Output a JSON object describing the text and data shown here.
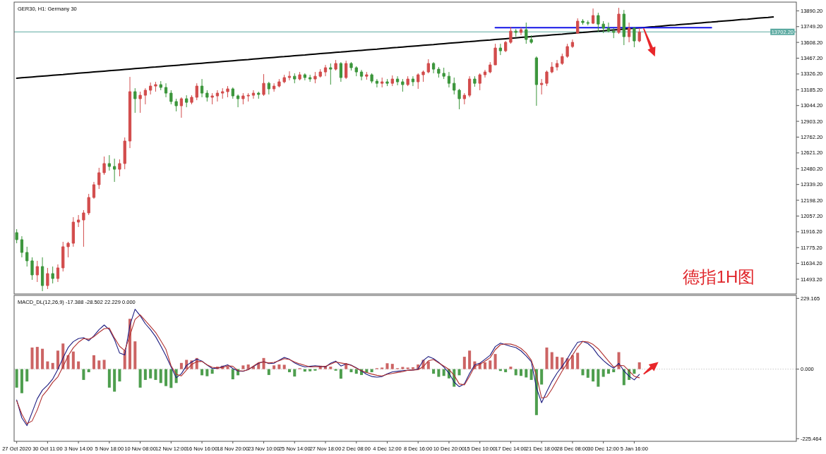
{
  "chart_data": [
    {
      "type": "candlestick",
      "title": "GER30, H1: Germany 30",
      "categories": [
        null,
        null,
        null,
        null,
        null,
        null,
        null,
        null,
        null,
        null,
        null,
        null,
        null,
        null,
        null,
        null,
        null,
        null,
        null,
        null,
        null,
        null,
        null,
        null,
        null,
        null,
        null,
        null,
        null,
        null,
        null,
        null,
        null,
        null,
        null,
        null,
        null,
        null,
        null,
        null,
        null,
        null,
        null,
        null,
        null,
        null,
        null,
        null,
        null,
        null,
        null,
        null,
        null,
        null,
        null,
        null,
        null,
        null,
        null,
        null,
        null,
        null,
        null,
        null,
        null,
        null,
        null,
        null,
        null,
        null,
        null,
        null,
        null,
        null,
        null,
        null,
        null,
        null,
        null,
        null,
        null,
        null,
        null,
        null,
        null,
        null,
        null,
        null,
        null,
        null,
        null,
        null,
        null,
        null,
        null,
        null,
        null,
        null,
        null,
        null,
        null,
        null,
        null,
        null,
        null,
        null,
        null,
        null,
        null,
        null,
        null,
        null,
        null,
        null,
        null,
        null,
        null,
        null,
        null,
        null,
        null,
        null,
        null,
        null,
        null,
        null,
        null,
        null,
        null,
        null,
        null,
        null,
        null,
        null,
        null,
        null,
        null,
        null,
        null,
        null,
        null,
        null,
        null,
        null,
        null,
        null,
        null,
        null,
        null,
        null,
        null,
        null
      ],
      "ohlc": [
        [
          11909,
          11940,
          11814,
          11846
        ],
        [
          11846,
          11877,
          11688,
          11732
        ],
        [
          11732,
          11783,
          11606,
          11657
        ],
        [
          11657,
          11688,
          11487,
          11531
        ],
        [
          11531,
          11657,
          11468,
          11606
        ],
        [
          11606,
          11688,
          11386,
          11436
        ],
        [
          11436,
          11594,
          11405,
          11543
        ],
        [
          11543,
          11606,
          11455,
          11499
        ],
        [
          11499,
          11625,
          11468,
          11594
        ],
        [
          11594,
          11827,
          11562,
          11783
        ],
        [
          11783,
          11827,
          11688,
          11814
        ],
        [
          11814,
          12047,
          11783,
          12003
        ],
        [
          12003,
          12066,
          11959,
          12022
        ],
        [
          12022,
          12110,
          11783,
          12085
        ],
        [
          12085,
          12255,
          12066,
          12223
        ],
        [
          12223,
          12362,
          12211,
          12337
        ],
        [
          12337,
          12488,
          12299,
          12444
        ],
        [
          12444,
          12589,
          12425,
          12526
        ],
        [
          12526,
          12601,
          12463,
          12500
        ],
        [
          12500,
          12570,
          12362,
          12475
        ],
        [
          12475,
          12563,
          12412,
          12526
        ],
        [
          12526,
          12759,
          12475,
          12727
        ],
        [
          12727,
          13300,
          12664,
          13168
        ],
        [
          13168,
          13199,
          12979,
          13105
        ],
        [
          13105,
          13168,
          12979,
          13136
        ],
        [
          13136,
          13199,
          13055,
          13181
        ],
        [
          13181,
          13250,
          13143,
          13218
        ],
        [
          13218,
          13256,
          13168,
          13231
        ],
        [
          13231,
          13262,
          13181,
          13206
        ],
        [
          13206,
          13243,
          13118,
          13155
        ],
        [
          13155,
          13181,
          13055,
          13080
        ],
        [
          13080,
          13105,
          12992,
          13042
        ],
        [
          13042,
          13118,
          12935,
          13105
        ],
        [
          13105,
          13136,
          13029,
          13073
        ],
        [
          13073,
          13136,
          13055,
          13118
        ],
        [
          13118,
          13243,
          13092,
          13218
        ],
        [
          13218,
          13281,
          13118,
          13155
        ],
        [
          13155,
          13181,
          13080,
          13118
        ],
        [
          13118,
          13155,
          13055,
          13130
        ],
        [
          13130,
          13181,
          13080,
          13155
        ],
        [
          13155,
          13199,
          13105,
          13168
        ],
        [
          13168,
          13218,
          13118,
          13193
        ],
        [
          13193,
          13206,
          13105,
          13130
        ],
        [
          13130,
          13143,
          13029,
          13105
        ],
        [
          13105,
          13155,
          13055,
          13130
        ],
        [
          13130,
          13155,
          13080,
          13136
        ],
        [
          13136,
          13181,
          13105,
          13155
        ],
        [
          13155,
          13168,
          13105,
          13143
        ],
        [
          13143,
          13325,
          13130,
          13243
        ],
        [
          13243,
          13256,
          13143,
          13193
        ],
        [
          13193,
          13243,
          13168,
          13218
        ],
        [
          13218,
          13281,
          13206,
          13256
        ],
        [
          13256,
          13319,
          13243,
          13294
        ],
        [
          13294,
          13350,
          13269,
          13306
        ],
        [
          13306,
          13332,
          13243,
          13281
        ],
        [
          13281,
          13344,
          13269,
          13319
        ],
        [
          13319,
          13332,
          13269,
          13294
        ],
        [
          13294,
          13319,
          13256,
          13281
        ],
        [
          13281,
          13344,
          13243,
          13306
        ],
        [
          13306,
          13369,
          13294,
          13344
        ],
        [
          13344,
          13407,
          13306,
          13382
        ],
        [
          13382,
          13420,
          13231,
          13369
        ],
        [
          13369,
          13451,
          13357,
          13420
        ],
        [
          13420,
          13432,
          13256,
          13294
        ],
        [
          13294,
          13445,
          13281,
          13420
        ],
        [
          13420,
          13432,
          13357,
          13382
        ],
        [
          13382,
          13395,
          13306,
          13344
        ],
        [
          13344,
          13363,
          13269,
          13306
        ],
        [
          13306,
          13344,
          13275,
          13319
        ],
        [
          13319,
          13332,
          13243,
          13262
        ],
        [
          13262,
          13281,
          13206,
          13243
        ],
        [
          13243,
          13294,
          13206,
          13256
        ],
        [
          13256,
          13281,
          13218,
          13243
        ],
        [
          13243,
          13313,
          13218,
          13281
        ],
        [
          13281,
          13306,
          13225,
          13256
        ],
        [
          13256,
          13281,
          13168,
          13231
        ],
        [
          13231,
          13306,
          13218,
          13281
        ],
        [
          13281,
          13306,
          13218,
          13256
        ],
        [
          13256,
          13332,
          13193,
          13319
        ],
        [
          13319,
          13357,
          13256,
          13344
        ],
        [
          13344,
          13458,
          13332,
          13420
        ],
        [
          13420,
          13432,
          13332,
          13369
        ],
        [
          13369,
          13388,
          13294,
          13332
        ],
        [
          13332,
          13382,
          13281,
          13306
        ],
        [
          13306,
          13344,
          13206,
          13243
        ],
        [
          13243,
          13294,
          13143,
          13181
        ],
        [
          13181,
          13193,
          13011,
          13105
        ],
        [
          13105,
          13155,
          13055,
          13136
        ],
        [
          13136,
          13306,
          13118,
          13281
        ],
        [
          13281,
          13306,
          13212,
          13243
        ],
        [
          13243,
          13332,
          13181,
          13319
        ],
        [
          13319,
          13363,
          13294,
          13344
        ],
        [
          13344,
          13432,
          13332,
          13407
        ],
        [
          13407,
          13596,
          13407,
          13558
        ],
        [
          13558,
          13596,
          13495,
          13533
        ],
        [
          13533,
          13621,
          13521,
          13609
        ],
        [
          13609,
          13747,
          13596,
          13709
        ],
        [
          13709,
          13728,
          13659,
          13697
        ],
        [
          13697,
          13741,
          13672,
          13722
        ],
        [
          13722,
          13785,
          13596,
          13634
        ],
        [
          13634,
          13672,
          13596,
          13609
        ],
        [
          13470,
          13483,
          13042,
          13231
        ],
        [
          13231,
          13281,
          13143,
          13243
        ],
        [
          13243,
          13357,
          13218,
          13344
        ],
        [
          13344,
          13432,
          13332,
          13388
        ],
        [
          13388,
          13451,
          13357,
          13420
        ],
        [
          13420,
          13508,
          13407,
          13483
        ],
        [
          13483,
          13596,
          13470,
          13571
        ],
        [
          13571,
          13634,
          13558,
          13609
        ],
        [
          13691,
          13823,
          13684,
          13798
        ],
        [
          13798,
          13816,
          13766,
          13785
        ],
        [
          13785,
          13804,
          13760,
          13779
        ],
        [
          13779,
          13911,
          13772,
          13848
        ],
        [
          13848,
          13873,
          13703,
          13772
        ],
        [
          13772,
          13798,
          13691,
          13735
        ],
        [
          13735,
          13785,
          13697,
          13709
        ],
        [
          13709,
          13735,
          13646,
          13697
        ],
        [
          13697,
          13917,
          13684,
          13861
        ],
        [
          13861,
          13898,
          13584,
          13659
        ],
        [
          13659,
          13785,
          13609,
          13735
        ],
        [
          13735,
          13747,
          13565,
          13621
        ],
        [
          13621,
          13735,
          13609,
          13702
        ],
        null,
        null,
        null,
        null,
        null,
        null,
        null,
        null,
        null,
        null,
        null,
        null,
        null,
        null,
        null,
        null,
        null,
        null,
        null,
        null,
        null,
        null,
        null,
        null,
        null,
        null,
        null,
        null,
        null,
        null
      ],
      "colors": [
        "#3c963c",
        "#3c963c",
        "#3c963c",
        "#3c963c",
        "#d24c4c",
        "#3c963c",
        "#d24c4c",
        "#3c963c",
        "#d24c4c",
        "#d24c4c",
        "#d24c4c",
        "#d24c4c",
        "#d24c4c",
        "#d24c4c",
        "#d24c4c",
        "#d24c4c",
        "#d24c4c",
        "#d24c4c",
        "#3c963c",
        "#3c963c",
        "#d24c4c",
        "#d24c4c",
        "#d24c4c",
        "#3c963c",
        "#d24c4c",
        "#d24c4c",
        "#d24c4c",
        "#d24c4c",
        "#3c963c",
        "#3c963c",
        "#3c963c",
        "#3c963c",
        "#d24c4c",
        "#3c963c",
        "#d24c4c",
        "#d24c4c",
        "#3c963c",
        "#3c963c",
        "#d24c4c",
        "#d24c4c",
        "#d24c4c",
        "#d24c4c",
        "#3c963c",
        "#3c963c",
        "#d24c4c",
        "#d24c4c",
        "#d24c4c",
        "#3c963c",
        "#d24c4c",
        "#3c963c",
        "#d24c4c",
        "#d24c4c",
        "#d24c4c",
        "#d24c4c",
        "#3c963c",
        "#d24c4c",
        "#3c963c",
        "#3c963c",
        "#d24c4c",
        "#d24c4c",
        "#d24c4c",
        "#3c963c",
        "#d24c4c",
        "#3c963c",
        "#d24c4c",
        "#3c963c",
        "#3c963c",
        "#3c963c",
        "#d24c4c",
        "#3c963c",
        "#3c963c",
        "#d24c4c",
        "#3c963c",
        "#d24c4c",
        "#3c963c",
        "#3c963c",
        "#d24c4c",
        "#3c963c",
        "#d24c4c",
        "#d24c4c",
        "#d24c4c",
        "#3c963c",
        "#3c963c",
        "#3c963c",
        "#3c963c",
        "#3c963c",
        "#3c963c",
        "#d24c4c",
        "#d24c4c",
        "#3c963c",
        "#d24c4c",
        "#d24c4c",
        "#d24c4c",
        "#d24c4c",
        "#3c963c",
        "#d24c4c",
        "#d24c4c",
        "#3c963c",
        "#d24c4c",
        "#3c963c",
        "#3c963c",
        "#3c963c",
        "#d24c4c",
        "#d24c4c",
        "#d24c4c",
        "#d24c4c",
        "#d24c4c",
        "#d24c4c",
        "#d24c4c",
        "#d24c4c",
        "#3c963c",
        "#3c963c",
        "#d24c4c",
        "#3c963c",
        "#3c963c",
        "#3c963c",
        "#3c963c",
        "#d24c4c",
        "#3c963c",
        "#d24c4c",
        "#3c963c",
        "#d24c4c",
        null,
        null,
        null,
        null,
        null,
        null,
        null,
        null,
        null,
        null,
        null,
        null,
        null,
        null,
        null,
        null,
        null,
        null,
        null,
        null,
        null,
        null,
        null,
        null,
        null,
        null,
        null,
        null,
        null,
        null
      ],
      "series": [
        {
          "type": "line",
          "color": "#000000",
          "values": [
            13288,
            13292,
            13295,
            13299,
            13303,
            13307,
            13310,
            13314,
            13318,
            13321,
            13325,
            13329,
            13333,
            13336,
            13340,
            13344,
            13348,
            13351,
            13355,
            13359,
            13362,
            13366,
            13370,
            13374,
            13377,
            13381,
            13385,
            13388,
            13392,
            13396,
            13400,
            13403,
            13407,
            13411,
            13415,
            13418,
            13422,
            13426,
            13429,
            13433,
            13437,
            13441,
            13444,
            13448,
            13452,
            13455,
            13459,
            13463,
            13467,
            13470,
            13474,
            13478,
            13481,
            13485,
            13489,
            13493,
            13496,
            13500,
            13504,
            13508,
            13511,
            13515,
            13519,
            13522,
            13526,
            13530,
            13534,
            13537,
            13541,
            13545,
            13548,
            13552,
            13556,
            13560,
            13563,
            13567,
            13571,
            13575,
            13578,
            13582,
            13586,
            13589,
            13593,
            13597,
            13601,
            13604,
            13608,
            13612,
            13615,
            13619,
            13623,
            13627,
            13630,
            13634,
            13638,
            13641,
            13645,
            13649,
            13653,
            13656,
            13660,
            13664,
            13668,
            13671,
            13675,
            13679,
            13682,
            13686,
            13690,
            13694,
            13697,
            13701,
            13705,
            13708,
            13712,
            13716,
            13720,
            13723,
            13727,
            13731,
            13735,
            13738,
            13742,
            13746,
            13749,
            13753,
            13757,
            13761,
            13764,
            13768,
            13772,
            13775,
            13779,
            13783,
            13787,
            13790,
            13794,
            13798,
            13801,
            13805,
            13809,
            13813,
            13816,
            13820,
            13824,
            13828,
            13831,
            13835,
            null,
            null,
            null,
            null
          ]
        },
        {
          "type": "line",
          "color": "#1414e6",
          "values": [
            null,
            null,
            null,
            null,
            null,
            null,
            null,
            null,
            null,
            null,
            null,
            null,
            null,
            null,
            null,
            null,
            null,
            null,
            null,
            null,
            null,
            null,
            null,
            null,
            null,
            null,
            null,
            null,
            null,
            null,
            null,
            null,
            null,
            null,
            null,
            null,
            null,
            null,
            null,
            null,
            null,
            null,
            null,
            null,
            null,
            null,
            null,
            null,
            null,
            null,
            null,
            null,
            null,
            null,
            null,
            null,
            null,
            null,
            null,
            null,
            null,
            null,
            null,
            null,
            null,
            null,
            null,
            null,
            null,
            null,
            null,
            null,
            null,
            null,
            null,
            null,
            null,
            null,
            null,
            null,
            null,
            null,
            null,
            null,
            null,
            null,
            null,
            null,
            null,
            null,
            null,
            null,
            null,
            13740,
            13740,
            13740,
            13740,
            13740,
            13740,
            13740,
            13740,
            13740,
            13740,
            13740,
            13740,
            13740,
            13740,
            13740,
            13740,
            13740,
            13740,
            13740,
            13740,
            13740,
            13740,
            13740,
            13740,
            13740,
            13740,
            13740,
            13740,
            13740,
            13740,
            13740,
            13740,
            13740,
            13740,
            13740,
            13740,
            13740,
            13740,
            13740,
            13740,
            13740,
            13740,
            13740,
            null,
            null,
            null,
            null,
            null,
            null,
            null,
            null,
            null,
            null,
            null,
            null,
            null,
            null,
            null,
            null
          ]
        }
      ],
      "ref_lines": [
        {
          "axis": "y",
          "value": 13702.2,
          "label": "13702.20",
          "color": "#5aa9a0"
        }
      ],
      "annotations": [
        "德指1H图"
      ],
      "ylim": [
        11361,
        13968
      ],
      "yticks": [
        {
          "value": 13890.2,
          "label": "13890.20"
        },
        {
          "value": 13749.2,
          "label": "13749.20"
        },
        {
          "value": 13608.2,
          "label": "13608.20"
        },
        {
          "value": 13467.2,
          "label": "13467.20"
        },
        {
          "value": 13326.2,
          "label": "13326.20"
        },
        {
          "value": 13185.2,
          "label": "13185.20"
        },
        {
          "value": 13044.2,
          "label": "13044.20"
        },
        {
          "value": 12903.2,
          "label": "12903.20"
        },
        {
          "value": 12762.2,
          "label": "12762.20"
        },
        {
          "value": 12621.2,
          "label": "12621.20"
        },
        {
          "value": 12480.2,
          "label": "12480.20"
        },
        {
          "value": 12339.2,
          "label": "12339.20"
        },
        {
          "value": 12198.2,
          "label": "12198.20"
        },
        {
          "value": 12057.2,
          "label": "12057.20"
        },
        {
          "value": 11916.2,
          "label": "11916.20"
        },
        {
          "value": 11775.2,
          "label": "11775.20"
        },
        {
          "value": 11634.2,
          "label": "11634.20"
        },
        {
          "value": 11493.2,
          "label": "11493.20"
        }
      ],
      "tick_labels": "y"
    },
    {
      "type": "bar",
      "title": "MACD_DL(12,26,9) -17.388 -28.502 22.229 0.000",
      "categories": [
        "27 Oct 2020",
        null,
        null,
        null,
        null,
        null,
        "30 Oct 11:00",
        null,
        null,
        null,
        null,
        null,
        "3 Nov 14:00",
        null,
        null,
        null,
        null,
        null,
        "5 Nov 18:00",
        null,
        null,
        null,
        null,
        null,
        "10 Nov 08:00",
        null,
        null,
        null,
        null,
        null,
        "12 Nov 12:00",
        null,
        null,
        null,
        null,
        null,
        "16 Nov 16:00",
        null,
        null,
        null,
        null,
        null,
        "18 Nov 20:00",
        null,
        null,
        null,
        null,
        null,
        "23 Nov 10:00",
        null,
        null,
        null,
        null,
        null,
        "25 Nov 14:00",
        null,
        null,
        null,
        null,
        null,
        "27 Nov 18:00",
        null,
        null,
        null,
        null,
        null,
        "2 Dec 08:00",
        null,
        null,
        null,
        null,
        null,
        "4 Dec 12:00",
        null,
        null,
        null,
        null,
        null,
        "8 Dec 16:00",
        null,
        null,
        null,
        null,
        null,
        "10 Dec 20:00",
        null,
        null,
        null,
        null,
        null,
        "15 Dec 10:00",
        null,
        null,
        null,
        null,
        null,
        "17 Dec 14:00",
        null,
        null,
        null,
        null,
        null,
        "21 Dec 18:00",
        null,
        null,
        null,
        null,
        null,
        "28 Dec 08:00",
        null,
        null,
        null,
        null,
        null,
        "30 Dec 12:00",
        null,
        null,
        null,
        null,
        null,
        "5 Jan 16:00",
        null,
        null,
        null,
        null,
        null,
        null,
        null,
        null,
        null,
        null,
        null,
        null,
        null,
        null,
        null,
        null,
        null,
        null,
        null,
        null,
        null,
        null,
        null,
        null,
        null,
        null,
        null,
        null,
        null,
        null,
        null
      ],
      "series": [
        {
          "type": "bar",
          "values": [
            -60,
            -78,
            -40,
            70,
            72,
            66,
            25,
            20,
            60,
            83,
            45,
            57,
            25,
            -35,
            -10,
            45,
            28,
            30,
            -60,
            -73,
            -40,
            60,
            163,
            90,
            -60,
            -35,
            -30,
            -35,
            -45,
            -55,
            -61,
            -45,
            20,
            30,
            28,
            36,
            -20,
            -23,
            -15,
            8,
            11,
            9,
            -33,
            -20,
            12,
            15,
            8,
            20,
            36,
            -19,
            12,
            15,
            14,
            -10,
            -24,
            3,
            -8,
            -7,
            -5,
            11,
            10,
            8,
            -5,
            -31,
            19,
            -10,
            -15,
            -19,
            -12,
            -10,
            3,
            5,
            19,
            17,
            3,
            7,
            5,
            6,
            15,
            30,
            25,
            -15,
            -25,
            -22,
            -30,
            -57,
            -20,
            40,
            60,
            25,
            20,
            22,
            28,
            49,
            -6,
            -10,
            8,
            -20,
            -22,
            -27,
            -35,
            -149,
            -50,
            70,
            55,
            40,
            38,
            35,
            45,
            53,
            -20,
            -28,
            -40,
            -57,
            -25,
            -15,
            -10,
            55,
            -52,
            -35,
            -15,
            22,
            null,
            null,
            null,
            null,
            null,
            null,
            null,
            null,
            null,
            null,
            null,
            null,
            null,
            null,
            null,
            null,
            null,
            null,
            null,
            null,
            null,
            null,
            null,
            null,
            null,
            null,
            null,
            null,
            null,
            null
          ],
          "colors": [
            "#4e9e4e",
            "#4e9e4e",
            "#4e9e4e",
            "#cc6464",
            "#cc6464",
            "#cc6464",
            "#cc6464",
            "#cc6464",
            "#cc6464",
            "#cc6464",
            "#cc6464",
            "#cc6464",
            "#cc6464",
            "#4e9e4e",
            "#4e9e4e",
            "#cc6464",
            "#cc6464",
            "#cc6464",
            "#4e9e4e",
            "#4e9e4e",
            "#4e9e4e",
            "#cc6464",
            "#cc6464",
            "#cc6464",
            "#4e9e4e",
            "#4e9e4e",
            "#4e9e4e",
            "#4e9e4e",
            "#4e9e4e",
            "#4e9e4e",
            "#4e9e4e",
            "#4e9e4e",
            "#cc6464",
            "#cc6464",
            "#cc6464",
            "#cc6464",
            "#4e9e4e",
            "#4e9e4e",
            "#4e9e4e",
            "#cc6464",
            "#cc6464",
            "#cc6464",
            "#4e9e4e",
            "#4e9e4e",
            "#cc6464",
            "#cc6464",
            "#cc6464",
            "#cc6464",
            "#cc6464",
            "#4e9e4e",
            "#cc6464",
            "#cc6464",
            "#cc6464",
            "#4e9e4e",
            "#4e9e4e",
            "#cc6464",
            "#4e9e4e",
            "#4e9e4e",
            "#4e9e4e",
            "#cc6464",
            "#cc6464",
            "#cc6464",
            "#4e9e4e",
            "#4e9e4e",
            "#cc6464",
            "#4e9e4e",
            "#4e9e4e",
            "#4e9e4e",
            "#4e9e4e",
            "#4e9e4e",
            "#cc6464",
            "#cc6464",
            "#cc6464",
            "#cc6464",
            "#cc6464",
            "#cc6464",
            "#cc6464",
            "#cc6464",
            "#cc6464",
            "#cc6464",
            "#cc6464",
            "#4e9e4e",
            "#4e9e4e",
            "#4e9e4e",
            "#4e9e4e",
            "#4e9e4e",
            "#4e9e4e",
            "#cc6464",
            "#cc6464",
            "#cc6464",
            "#cc6464",
            "#cc6464",
            "#cc6464",
            "#cc6464",
            "#4e9e4e",
            "#4e9e4e",
            "#cc6464",
            "#4e9e4e",
            "#4e9e4e",
            "#4e9e4e",
            "#4e9e4e",
            "#4e9e4e",
            "#4e9e4e",
            "#cc6464",
            "#cc6464",
            "#cc6464",
            "#cc6464",
            "#cc6464",
            "#cc6464",
            "#cc6464",
            "#4e9e4e",
            "#4e9e4e",
            "#4e9e4e",
            "#4e9e4e",
            "#4e9e4e",
            "#4e9e4e",
            "#4e9e4e",
            "#cc6464",
            "#4e9e4e",
            "#4e9e4e",
            "#4e9e4e",
            "#cc6464",
            null,
            null,
            null,
            null,
            null,
            null,
            null,
            null,
            null,
            null,
            null,
            null,
            null,
            null,
            null,
            null,
            null,
            null,
            null,
            null,
            null,
            null,
            null,
            null,
            null,
            null,
            null,
            null,
            null,
            null
          ]
        },
        {
          "type": "line",
          "color": "#1c1c80",
          "values": [
            -100,
            -158,
            -183,
            -140,
            -96,
            -68,
            -52,
            -32,
            -1,
            36,
            70,
            89,
            99,
            102,
            92,
            108,
            128,
            143,
            128,
            96,
            52,
            46,
            142,
            194,
            173,
            147,
            128,
            105,
            75,
            43,
            7,
            -28,
            -15,
            12,
            23,
            32,
            26,
            13,
            2,
            3,
            9,
            14,
            2,
            -6,
            -7,
            -1,
            8,
            19,
            24,
            18,
            19,
            29,
            38,
            32,
            20,
            12,
            7,
            9,
            11,
            9,
            7,
            19,
            26,
            10,
            17,
            13,
            4,
            -6,
            -17,
            -24,
            -26,
            -24,
            -15,
            -9,
            -7,
            -5,
            -4,
            -3,
            0,
            28,
            41,
            34,
            22,
            7,
            -13,
            -42,
            -57,
            -48,
            -14,
            14,
            19,
            32,
            45,
            73,
            84,
            79,
            74,
            70,
            59,
            43,
            24,
            -61,
            -109,
            -73,
            -40,
            -13,
            9,
            34,
            62,
            87,
            90,
            83,
            68,
            45,
            28,
            14,
            3,
            19,
            -6,
            -23,
            -35,
            -17,
            null,
            null,
            null,
            null,
            null,
            null,
            null,
            null,
            null,
            null,
            null,
            null,
            null,
            null,
            null,
            null,
            null,
            null,
            null,
            null,
            null,
            null,
            null,
            null,
            null,
            null,
            null,
            null,
            null,
            null
          ]
        },
        {
          "type": "line",
          "color": "#b03030",
          "values": [
            -103,
            -146,
            -177,
            -168,
            -132,
            -87,
            -67,
            -43,
            -25,
            8,
            43,
            69,
            87,
            99,
            97,
            105,
            119,
            131,
            133,
            101,
            74,
            60,
            109,
            161,
            176,
            157,
            138,
            119,
            92,
            64,
            11,
            -17,
            -22,
            -3,
            15,
            24,
            25,
            14,
            6,
            4,
            5,
            11,
            9,
            -5,
            -6,
            -2,
            10,
            21,
            23,
            20,
            22,
            27,
            34,
            31,
            23,
            17,
            12,
            7,
            8,
            8,
            9,
            16,
            23,
            20,
            17,
            12,
            3,
            -5,
            -11,
            -16,
            -20,
            -22,
            -17,
            -14,
            -11,
            -8,
            -4,
            -3,
            -2,
            8,
            27,
            31,
            20,
            10,
            -1,
            -20,
            -48,
            -51,
            -23,
            9,
            15,
            26,
            37,
            63,
            79,
            82,
            81,
            76,
            67,
            52,
            29,
            -21,
            -94,
            -90,
            -65,
            -35,
            -6,
            20,
            45,
            71,
            90,
            88,
            80,
            66,
            46,
            26,
            7,
            12,
            11,
            -6,
            -23,
            -28,
            null,
            null,
            null,
            null,
            null,
            null,
            null,
            null,
            null,
            null,
            null,
            null,
            null,
            null,
            null,
            null,
            null,
            null,
            null,
            null,
            null,
            null,
            null,
            null,
            null,
            null,
            null,
            null,
            null,
            null
          ]
        }
      ],
      "ref_lines": [
        {
          "axis": "y",
          "value": 0,
          "color": "#c8c8c8",
          "line_style": "dotted"
        }
      ],
      "ylim": [
        -234,
        239
      ],
      "yticks": [
        229.165,
        {
          "value": 0,
          "label": "0.000"
        },
        -225.464
      ]
    }
  ]
}
